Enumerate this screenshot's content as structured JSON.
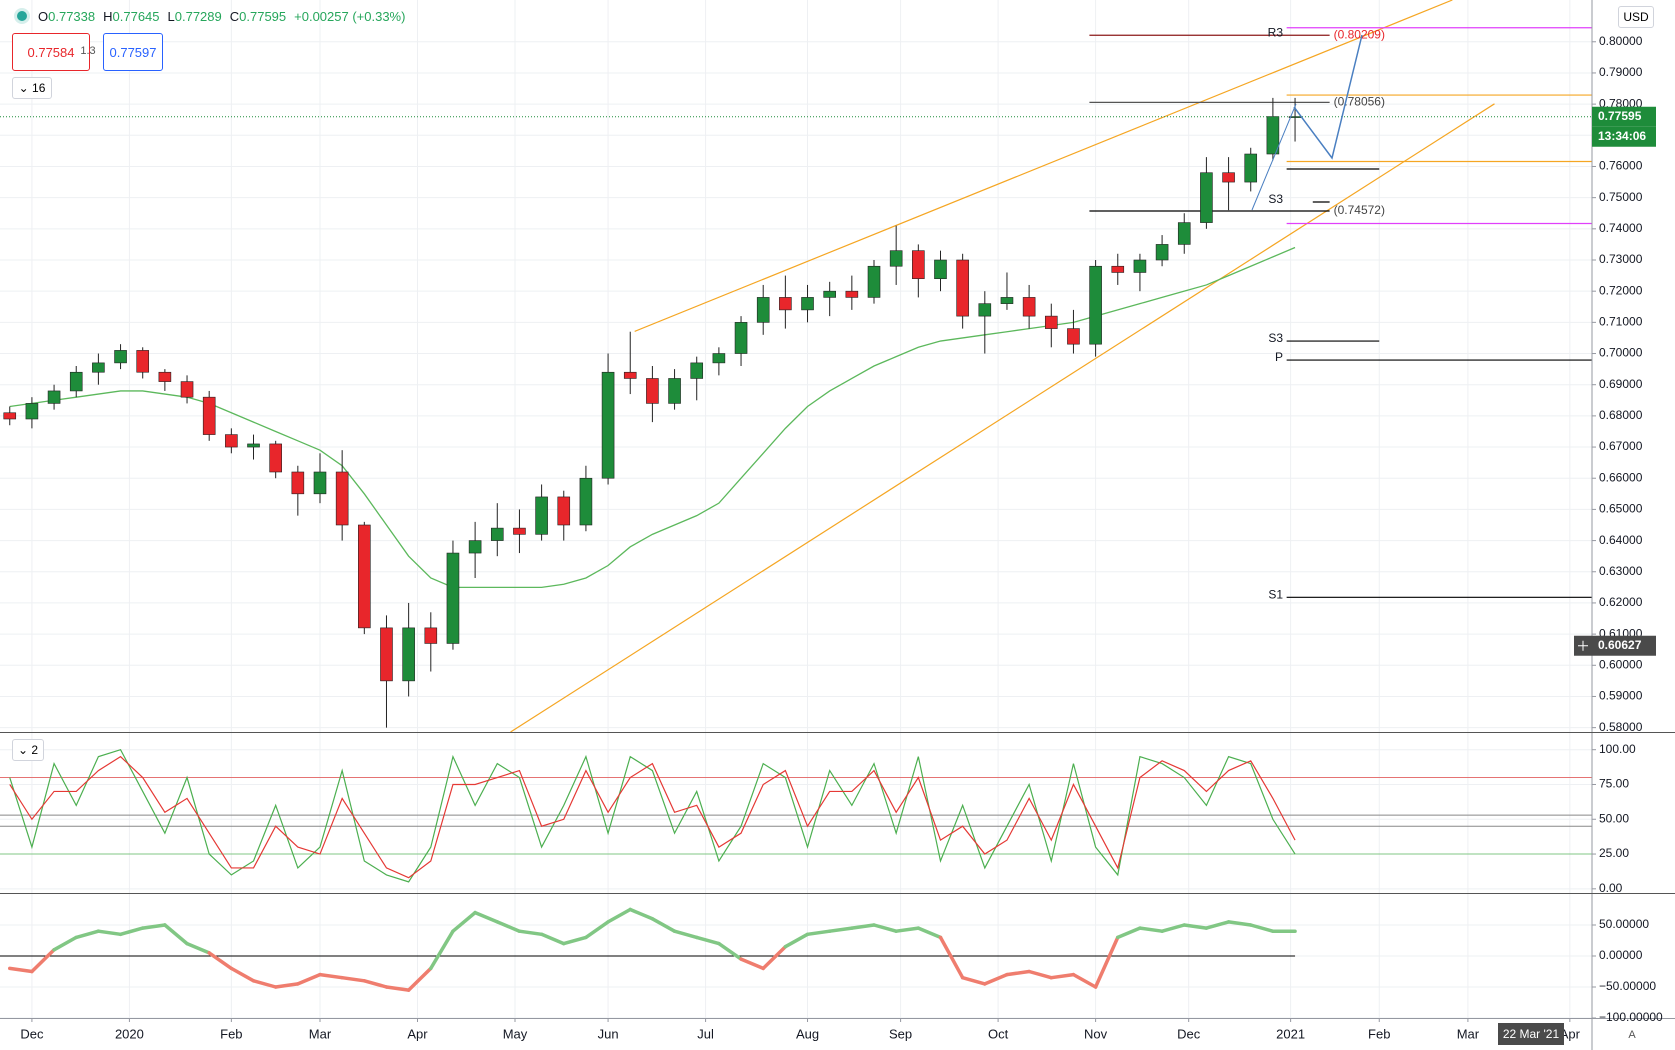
{
  "header": {
    "ohlc": [
      {
        "label": "O",
        "value": "0.77338"
      },
      {
        "label": "H",
        "value": "0.77645"
      },
      {
        "label": "L",
        "value": "0.77289"
      },
      {
        "label": "C",
        "value": "0.77595"
      }
    ],
    "change": "+0.00257 (+0.33%)",
    "bid": "0.77584",
    "spread": "1.3",
    "ask": "0.77597",
    "interval": "16",
    "cursor_date": "22 Mar '21",
    "scale_mode": "A"
  },
  "chart_data": [
    {
      "type": "candlestick",
      "currency": "USD",
      "pane_label": "16",
      "x": [
        -5,
        0,
        5,
        10,
        15,
        20,
        25,
        30,
        35,
        40,
        45,
        50,
        55,
        60,
        65,
        70,
        75,
        80,
        85,
        90,
        95,
        100,
        105,
        110,
        115,
        120,
        125,
        130,
        135,
        140,
        145,
        150,
        155,
        160,
        165,
        170,
        175,
        180,
        185,
        190,
        195,
        200,
        205,
        210,
        215,
        220,
        225,
        230,
        235,
        240,
        245,
        250,
        255,
        260,
        265,
        270,
        275,
        280,
        285
      ],
      "open": [
        0.681,
        0.679,
        0.684,
        0.688,
        0.694,
        0.697,
        0.701,
        0.694,
        0.691,
        0.686,
        0.674,
        0.67,
        0.671,
        0.662,
        0.655,
        0.662,
        0.645,
        0.612,
        0.595,
        0.612,
        0.607,
        0.636,
        0.64,
        0.644,
        0.642,
        0.654,
        0.645,
        0.66,
        0.694,
        0.692,
        0.684,
        0.692,
        0.697,
        0.7,
        0.71,
        0.718,
        0.714,
        0.718,
        0.72,
        0.718,
        0.728,
        0.733,
        0.724,
        0.73,
        0.712,
        0.716,
        0.718,
        0.712,
        0.708,
        0.703,
        0.728,
        0.726,
        0.73,
        0.735,
        0.742,
        0.758,
        0.755,
        0.764,
        0.776
      ],
      "high": [
        0.683,
        0.686,
        0.69,
        0.696,
        0.7,
        0.703,
        0.702,
        0.695,
        0.693,
        0.688,
        0.676,
        0.674,
        0.672,
        0.664,
        0.668,
        0.669,
        0.646,
        0.616,
        0.62,
        0.617,
        0.64,
        0.646,
        0.652,
        0.65,
        0.658,
        0.656,
        0.664,
        0.7,
        0.707,
        0.696,
        0.695,
        0.699,
        0.702,
        0.712,
        0.722,
        0.725,
        0.722,
        0.723,
        0.725,
        0.73,
        0.741,
        0.735,
        0.733,
        0.732,
        0.72,
        0.726,
        0.722,
        0.716,
        0.714,
        0.73,
        0.732,
        0.732,
        0.738,
        0.745,
        0.763,
        0.763,
        0.766,
        0.782,
        0.782
      ],
      "low": [
        0.677,
        0.676,
        0.682,
        0.686,
        0.69,
        0.695,
        0.692,
        0.688,
        0.684,
        0.672,
        0.668,
        0.666,
        0.66,
        0.648,
        0.652,
        0.64,
        0.61,
        0.58,
        0.59,
        0.598,
        0.605,
        0.628,
        0.635,
        0.636,
        0.64,
        0.64,
        0.643,
        0.658,
        0.687,
        0.678,
        0.682,
        0.685,
        0.693,
        0.696,
        0.706,
        0.708,
        0.71,
        0.712,
        0.714,
        0.716,
        0.722,
        0.718,
        0.72,
        0.708,
        0.7,
        0.714,
        0.708,
        0.702,
        0.7,
        0.699,
        0.722,
        0.72,
        0.728,
        0.732,
        0.74,
        0.746,
        0.752,
        0.762,
        0.768
      ],
      "close": [
        0.679,
        0.684,
        0.688,
        0.694,
        0.697,
        0.701,
        0.694,
        0.691,
        0.686,
        0.674,
        0.67,
        0.671,
        0.662,
        0.655,
        0.662,
        0.645,
        0.612,
        0.595,
        0.612,
        0.607,
        0.636,
        0.64,
        0.644,
        0.642,
        0.654,
        0.645,
        0.66,
        0.694,
        0.692,
        0.684,
        0.692,
        0.697,
        0.7,
        0.71,
        0.718,
        0.714,
        0.718,
        0.72,
        0.718,
        0.728,
        0.733,
        0.724,
        0.73,
        0.712,
        0.716,
        0.718,
        0.712,
        0.708,
        0.703,
        0.728,
        0.726,
        0.73,
        0.735,
        0.742,
        0.758,
        0.755,
        0.764,
        0.776,
        0.776
      ],
      "up_color": "#1e8c3a",
      "down_color": "#e8262b",
      "xlim": [
        -7.2,
        352
      ],
      "ylim": [
        0.5786,
        0.8134
      ],
      "grid": true,
      "xticks": [
        {
          "value": 0,
          "label": "Dec"
        },
        {
          "value": 22,
          "label": "2020"
        },
        {
          "value": 45,
          "label": "Feb"
        },
        {
          "value": 65,
          "label": "Mar"
        },
        {
          "value": 87,
          "label": "Apr"
        },
        {
          "value": 109,
          "label": "May"
        },
        {
          "value": 130,
          "label": "Jun"
        },
        {
          "value": 152,
          "label": "Jul"
        },
        {
          "value": 175,
          "label": "Aug"
        },
        {
          "value": 196,
          "label": "Sep"
        },
        {
          "value": 218,
          "label": "Oct"
        },
        {
          "value": 240,
          "label": "Nov"
        },
        {
          "value": 261,
          "label": "Dec"
        },
        {
          "value": 284,
          "label": "2021"
        },
        {
          "value": 304,
          "label": "Feb"
        },
        {
          "value": 324,
          "label": "Mar"
        },
        {
          "value": 347,
          "label": "Apr"
        }
      ],
      "yticks": [
        {
          "value": 0.58,
          "label": "0.58000"
        },
        {
          "value": 0.59,
          "label": "0.59000"
        },
        {
          "value": 0.6,
          "label": "0.60000"
        },
        {
          "value": 0.61,
          "label": "0.61000"
        },
        {
          "value": 0.62,
          "label": "0.62000"
        },
        {
          "value": 0.63,
          "label": "0.63000"
        },
        {
          "value": 0.64,
          "label": "0.64000"
        },
        {
          "value": 0.65,
          "label": "0.65000"
        },
        {
          "value": 0.66,
          "label": "0.66000"
        },
        {
          "value": 0.67,
          "label": "0.67000"
        },
        {
          "value": 0.68,
          "label": "0.68000"
        },
        {
          "value": 0.69,
          "label": "0.69000"
        },
        {
          "value": 0.7,
          "label": "0.70000"
        },
        {
          "value": 0.71,
          "label": "0.71000"
        },
        {
          "value": 0.72,
          "label": "0.72000"
        },
        {
          "value": 0.73,
          "label": "0.73000"
        },
        {
          "value": 0.74,
          "label": "0.74000"
        },
        {
          "value": 0.75,
          "label": "0.75000"
        },
        {
          "value": 0.76,
          "label": "0.76000"
        },
        {
          "value": 0.77,
          "label": "0.77000"
        },
        {
          "value": 0.78,
          "label": "0.78000"
        },
        {
          "value": 0.79,
          "label": "0.79000"
        },
        {
          "value": 0.8,
          "label": "0.80000"
        }
      ],
      "overlays": [
        {
          "color": "#5cb85c",
          "values": [
            0.683,
            0.684,
            0.685,
            0.686,
            0.687,
            0.688,
            0.688,
            0.687,
            0.686,
            0.684,
            0.681,
            0.678,
            0.675,
            0.672,
            0.669,
            0.664,
            0.655,
            0.645,
            0.635,
            0.628,
            0.625,
            0.625,
            0.625,
            0.625,
            0.625,
            0.626,
            0.628,
            0.632,
            0.638,
            0.642,
            0.645,
            0.648,
            0.652,
            0.66,
            0.668,
            0.676,
            0.683,
            0.688,
            0.692,
            0.696,
            0.699,
            0.702,
            0.704,
            0.705,
            0.706,
            0.707,
            0.708,
            0.709,
            0.71,
            0.712,
            0.714,
            0.716,
            0.718,
            0.72,
            0.722,
            0.725,
            0.728,
            0.731,
            0.734
          ]
        }
      ],
      "trendlines": [
        {
          "color": "#f5a623",
          "x": [
            136,
            320.5
          ],
          "values": [
            0.7071,
            0.8134
          ]
        },
        {
          "color": "#f5a623",
          "x": [
            108,
            330
          ],
          "values": [
            0.5786,
            0.7801
          ]
        }
      ],
      "levels": [
        {
          "label": "R3",
          "value": 0.80209,
          "value_label": "(0.80209)",
          "x": [
            238.6,
            292.8
          ],
          "color": "#8b1a1a"
        },
        {
          "value": 0.78056,
          "value_label": "(0.78056)",
          "x": [
            238.6,
            292.8
          ],
          "color": "#555555"
        },
        {
          "value": 0.74572,
          "value_label": "(0.74572)",
          "x": [
            238.6,
            292.8
          ],
          "color": "#000000"
        },
        {
          "label": "S3",
          "value": 0.7486,
          "x": [
            289,
            292.8
          ],
          "color": "#000000"
        },
        {
          "label": "S3",
          "value": 0.704,
          "x": [
            283.1,
            304
          ],
          "color": "#000000"
        },
        {
          "label": "P",
          "value": 0.6979,
          "x": [
            283.1,
            352
          ],
          "color": "#000000"
        },
        {
          "label": "S1",
          "value": 0.6218,
          "x": [
            283.1,
            352
          ],
          "color": "#000000"
        },
        {
          "value": 0.8045,
          "x": [
            283.1,
            352
          ],
          "color": "#e040fb"
        },
        {
          "value": 0.7417,
          "x": [
            283.1,
            352
          ],
          "color": "#e040fb"
        },
        {
          "value": 0.7829,
          "x": [
            283.1,
            352
          ],
          "color": "#f5a623"
        },
        {
          "value": 0.7616,
          "x": [
            283.1,
            352
          ],
          "color": "#f5a623"
        },
        {
          "value": 0.7592,
          "x": [
            283.1,
            304
          ],
          "color": "#000000"
        }
      ],
      "last_price": {
        "value": 0.77595,
        "label": "0.77595",
        "countdown": "13:34:06",
        "color": "#1e8c3a"
      },
      "cursor": {
        "value": 0.60627,
        "label": "0.60627"
      }
    },
    {
      "type": "line",
      "pane_label": "2",
      "ylim": [
        -3,
        112
      ],
      "grid": true,
      "yticks": [
        {
          "value": 0,
          "label": "0.00"
        },
        {
          "value": 25,
          "label": "25.00"
        },
        {
          "value": 50,
          "label": "50.00"
        },
        {
          "value": 75,
          "label": "75.00"
        },
        {
          "value": 100,
          "label": "100.00"
        }
      ],
      "series": [
        {
          "color": "#4caf50",
          "values": [
            80,
            30,
            90,
            60,
            95,
            100,
            70,
            40,
            80,
            25,
            10,
            20,
            60,
            15,
            30,
            85,
            20,
            10,
            5,
            30,
            95,
            60,
            90,
            80,
            30,
            60,
            95,
            40,
            95,
            85,
            40,
            70,
            20,
            45,
            90,
            80,
            30,
            85,
            60,
            90,
            40,
            95,
            20,
            60,
            15,
            45,
            75,
            20,
            90,
            30,
            10,
            95,
            90,
            80,
            60,
            95,
            90,
            50,
            25
          ]
        },
        {
          "color": "#e53935",
          "values": [
            75,
            50,
            70,
            70,
            85,
            95,
            80,
            55,
            65,
            40,
            15,
            15,
            45,
            30,
            25,
            65,
            40,
            15,
            8,
            20,
            75,
            75,
            80,
            85,
            45,
            50,
            85,
            55,
            80,
            90,
            55,
            60,
            30,
            40,
            75,
            85,
            45,
            70,
            70,
            85,
            55,
            80,
            35,
            45,
            25,
            35,
            65,
            35,
            75,
            45,
            15,
            80,
            92,
            85,
            70,
            85,
            92,
            65,
            35
          ]
        }
      ],
      "hlines": [
        {
          "value": 80,
          "color": "#e57373"
        },
        {
          "value": 53,
          "color": "#888888"
        },
        {
          "value": 45,
          "color": "#888888"
        },
        {
          "value": 25,
          "color": "#81c784"
        }
      ]
    },
    {
      "type": "sign_line",
      "ylim": [
        -100,
        100
      ],
      "grid": true,
      "yticks": [
        {
          "value": -100,
          "label": "−100.00000"
        },
        {
          "value": -50,
          "label": "−50.00000"
        },
        {
          "value": 0,
          "label": "0.00000"
        },
        {
          "value": 50,
          "label": "50.00000"
        }
      ],
      "values": [
        -20,
        -25,
        10,
        30,
        40,
        35,
        45,
        50,
        20,
        5,
        -20,
        -40,
        -50,
        -45,
        -30,
        -35,
        -40,
        -50,
        -55,
        -20,
        40,
        70,
        55,
        40,
        35,
        20,
        30,
        55,
        75,
        60,
        40,
        30,
        20,
        -5,
        -20,
        15,
        35,
        40,
        45,
        50,
        40,
        45,
        30,
        -35,
        -45,
        -30,
        -25,
        -35,
        -30,
        -50,
        30,
        45,
        40,
        50,
        45,
        55,
        50,
        40,
        40
      ],
      "positive_color": "#81c784",
      "negative_color": "#ef7d6e",
      "zero_line": 0
    }
  ]
}
